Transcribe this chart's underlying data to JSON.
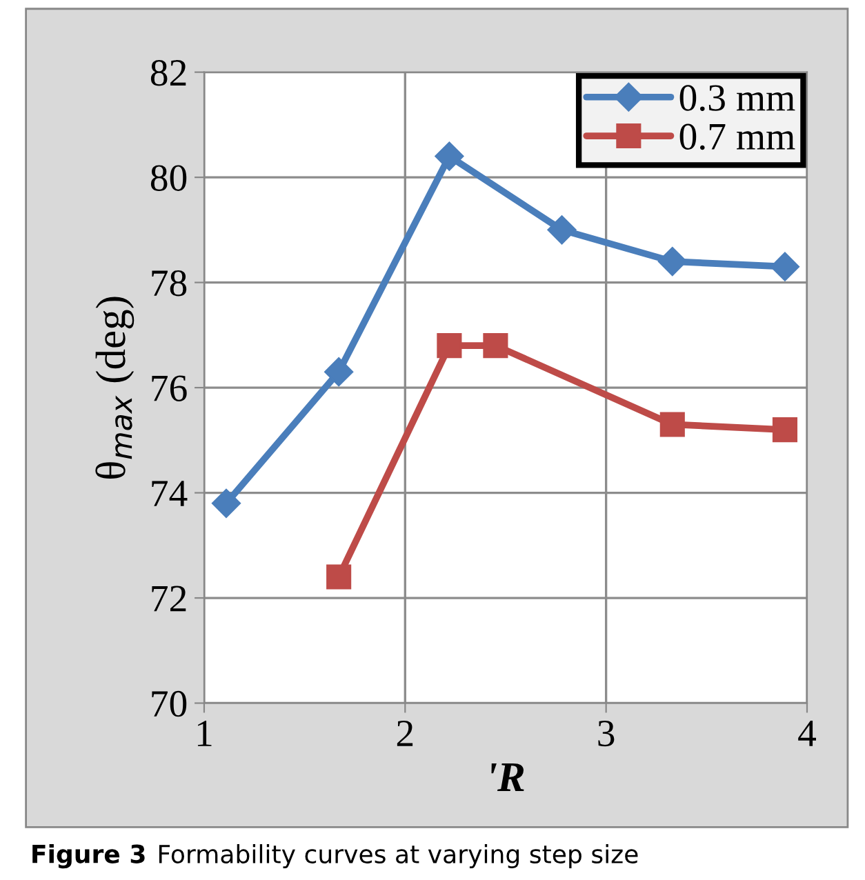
{
  "chart_data": {
    "type": "line",
    "xlabel": "'R",
    "ylabel": "θ$_{max}$ (deg)",
    "xlim": [
      1,
      4
    ],
    "xticks": [
      1,
      2,
      3,
      4
    ],
    "ylim": [
      70,
      82
    ],
    "yticks": [
      70,
      72,
      74,
      76,
      78,
      80,
      82
    ],
    "grid": true,
    "legend": "top right",
    "line_style": "solid",
    "series": [
      {
        "name": "0.3 mm",
        "color": "#4a7ebb",
        "marker": "diamond",
        "x": [
          1.11,
          1.67,
          2.22,
          2.78,
          3.33,
          3.89
        ],
        "values": [
          73.8,
          76.3,
          80.4,
          79.0,
          78.4,
          78.3
        ]
      },
      {
        "name": "0.7 mm",
        "color": "#be4b48",
        "marker": "square",
        "x": [
          1.67,
          2.22,
          2.45,
          3.33,
          3.89
        ],
        "values": [
          72.4,
          76.8,
          76.8,
          75.3,
          75.2
        ]
      }
    ],
    "annotations": [
      "Figure 3",
      "Formability curves at varying step size"
    ]
  }
}
